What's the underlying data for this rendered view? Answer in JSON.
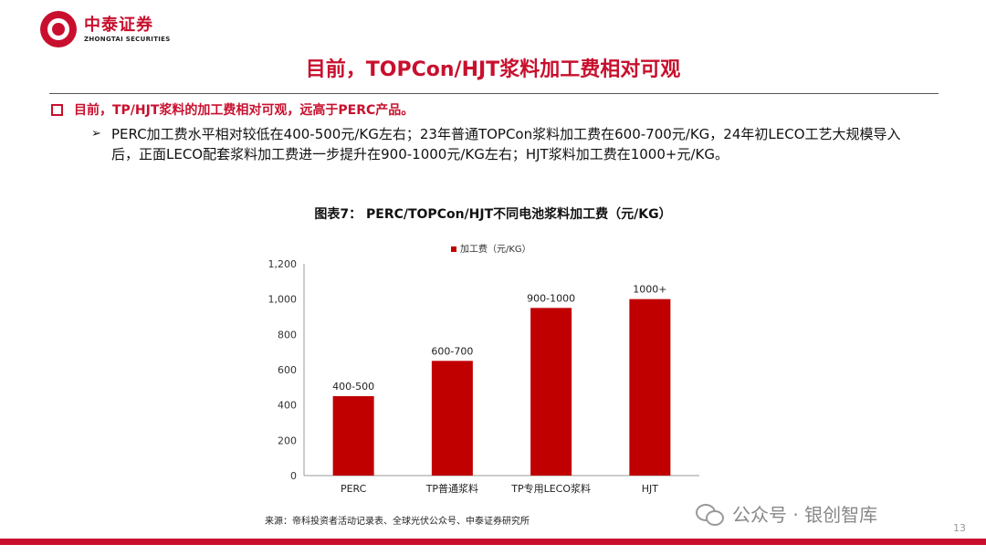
{
  "logo": {
    "name_cn": "中泰证券",
    "name_en": "ZHONGTAI SECURITIES"
  },
  "slide_title": "目前，TOPCon/HJT浆料加工费相对可观",
  "bullet1": "目前，TP/HJT浆料的加工费相对可观，远高于PERC产品。",
  "bullet2": "PERC加工费水平相对较低在400-500元/KG左右；23年普通TOPCon浆料加工费在600-700元/KG，24年初LECO工艺大规模导入后，正面LECO配套浆料加工费进一步提升在900-1000元/KG左右；HJT浆料加工费在1000+元/KG。",
  "figure_title": "图表7：  PERC/TOPCon/HJT不同电池浆料加工费（元/KG）",
  "source": "来源：帝科投资者活动记录表、全球光伏公众号、中泰证券研究所",
  "watermark": "公众号 · 银创智库",
  "page_number": "13",
  "colors": {
    "brand_red": "#c8102e",
    "bar": "#c00000"
  },
  "chart_data": {
    "type": "bar",
    "categories": [
      "PERC",
      "TP普通浆料",
      "TP专用LECO浆料",
      "HJT"
    ],
    "series": [
      {
        "name": "加工费（元/KG）",
        "values": [
          450,
          650,
          950,
          1000
        ]
      }
    ],
    "data_labels": [
      "400-500",
      "600-700",
      "900-1000",
      "1000+"
    ],
    "yticks": [
      "0",
      "200",
      "400",
      "600",
      "800",
      "1,000",
      "1,200"
    ],
    "ylim": [
      0,
      1200
    ],
    "legend": "top-center",
    "grid": false
  }
}
